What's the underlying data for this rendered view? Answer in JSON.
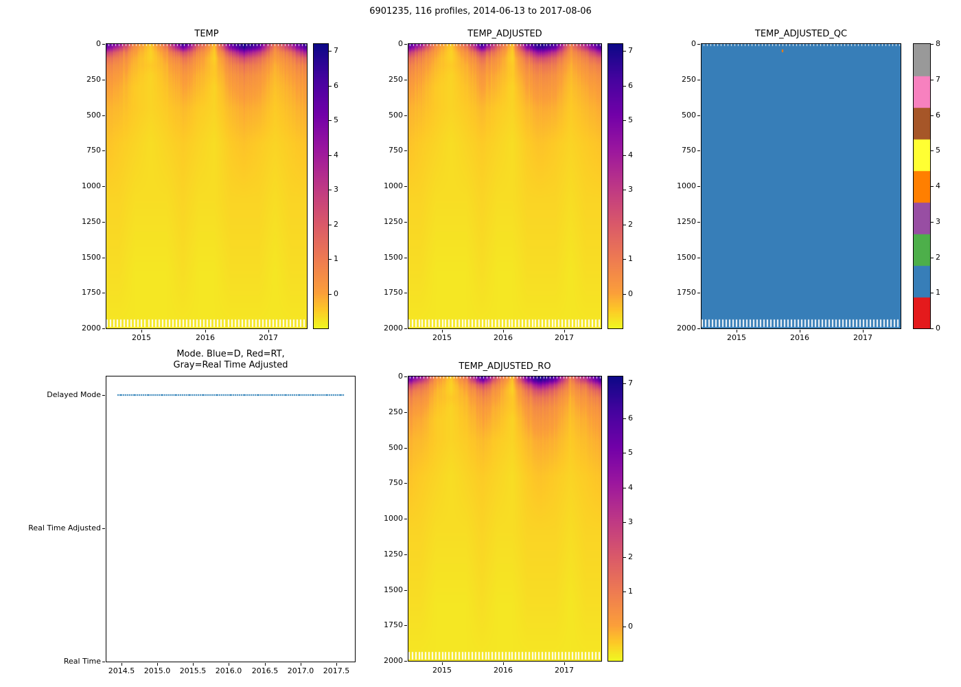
{
  "figure": {
    "title": "6901235, 116 profiles, 2014-06-13 to 2017-08-06",
    "background": "#ffffff"
  },
  "chart_data": [
    {
      "id": "temp",
      "type": "heatmap",
      "title": "TEMP",
      "xlabel": "",
      "ylabel": "",
      "x_range": [
        2014.45,
        2017.6
      ],
      "y_range": [
        2000,
        0
      ],
      "x_ticks": [
        {
          "v": 2015,
          "label": "2015"
        },
        {
          "v": 2016,
          "label": "2016"
        },
        {
          "v": 2017,
          "label": "2017"
        }
      ],
      "y_ticks": [
        0,
        250,
        500,
        750,
        1000,
        1250,
        1500,
        1750,
        2000
      ],
      "colormap": "plasma_r",
      "vmin": -1.0,
      "vmax": 7.2,
      "colorbar_ticks": [
        0,
        1,
        2,
        3,
        4,
        5,
        6,
        7
      ],
      "n_profiles": 116,
      "profile_span": [
        2014.45,
        2017.6
      ],
      "grid": {
        "times": [
          2014.45,
          2014.65,
          2014.9,
          2015.15,
          2015.4,
          2015.65,
          2015.9,
          2016.15,
          2016.4,
          2016.6,
          2016.85,
          2017.1,
          2017.35,
          2017.6
        ],
        "depths": [
          0,
          30,
          60,
          100,
          150,
          220,
          300,
          450,
          700,
          1100,
          1600,
          2000
        ],
        "values": [
          [
            6.0,
            4.5,
            0.5,
            -0.5,
            1.5,
            6.5,
            2.0,
            -0.4,
            5.5,
            7.0,
            6.0,
            1.0,
            4.0,
            6.8
          ],
          [
            5.0,
            3.0,
            0.2,
            -0.55,
            0.8,
            5.0,
            1.2,
            -0.5,
            4.5,
            6.5,
            5.0,
            0.5,
            3.0,
            6.0
          ],
          [
            3.0,
            1.5,
            0.0,
            -0.6,
            0.3,
            2.5,
            0.6,
            -0.55,
            2.5,
            4.5,
            3.0,
            0.2,
            1.5,
            4.0
          ],
          [
            1.5,
            0.8,
            -0.2,
            -0.6,
            0.0,
            1.2,
            0.2,
            -0.6,
            1.2,
            2.5,
            1.5,
            0.0,
            0.8,
            2.0
          ],
          [
            0.8,
            0.4,
            -0.3,
            -0.5,
            -0.2,
            0.6,
            0.0,
            -0.5,
            0.6,
            1.2,
            0.8,
            -0.2,
            0.4,
            1.0
          ],
          [
            0.4,
            0.1,
            -0.4,
            -0.6,
            -0.3,
            0.2,
            -0.2,
            -0.5,
            0.2,
            0.6,
            0.3,
            -0.3,
            0.1,
            0.5
          ],
          [
            0.1,
            -0.1,
            -0.5,
            -0.6,
            -0.4,
            0.0,
            -0.3,
            -0.6,
            0.0,
            0.3,
            0.1,
            -0.4,
            -0.1,
            0.2
          ],
          [
            -0.2,
            -0.3,
            -0.5,
            -0.6,
            -0.5,
            -0.3,
            -0.5,
            -0.6,
            -0.3,
            -0.1,
            -0.2,
            -0.5,
            -0.3,
            -0.1
          ],
          [
            -0.4,
            -0.5,
            -0.6,
            -0.7,
            -0.6,
            -0.5,
            -0.6,
            -0.7,
            -0.5,
            -0.4,
            -0.5,
            -0.6,
            -0.5,
            -0.4
          ],
          [
            -0.6,
            -0.6,
            -0.7,
            -0.7,
            -0.7,
            -0.6,
            -0.7,
            -0.7,
            -0.6,
            -0.6,
            -0.6,
            -0.7,
            -0.6,
            -0.6
          ],
          [
            -0.7,
            -0.7,
            -0.8,
            -0.8,
            -0.8,
            -0.7,
            -0.8,
            -0.8,
            -0.7,
            -0.7,
            -0.7,
            -0.8,
            -0.7,
            -0.7
          ],
          [
            -0.8,
            -0.8,
            -0.8,
            -0.8,
            -0.8,
            -0.8,
            -0.8,
            -0.8,
            -0.8,
            -0.8,
            -0.8,
            -0.8,
            -0.8,
            -0.8
          ]
        ]
      }
    },
    {
      "id": "temp_adjusted",
      "type": "heatmap",
      "title": "TEMP_ADJUSTED",
      "xlabel": "",
      "ylabel": "",
      "x_range": [
        2014.45,
        2017.6
      ],
      "y_range": [
        2000,
        0
      ],
      "x_ticks": [
        {
          "v": 2015,
          "label": "2015"
        },
        {
          "v": 2016,
          "label": "2016"
        },
        {
          "v": 2017,
          "label": "2017"
        }
      ],
      "y_ticks": [
        0,
        250,
        500,
        750,
        1000,
        1250,
        1500,
        1750,
        2000
      ],
      "colormap": "plasma_r",
      "vmin": -1.0,
      "vmax": 7.2,
      "colorbar_ticks": [
        0,
        1,
        2,
        3,
        4,
        5,
        6,
        7
      ],
      "n_profiles": 116,
      "profile_span": [
        2014.45,
        2017.6
      ],
      "grid_ref": "temp"
    },
    {
      "id": "temp_adjusted_qc",
      "type": "heatmap_discrete",
      "title": "TEMP_ADJUSTED_QC",
      "xlabel": "",
      "ylabel": "",
      "x_range": [
        2014.45,
        2017.6
      ],
      "y_range": [
        2000,
        0
      ],
      "x_ticks": [
        {
          "v": 2015,
          "label": "2015"
        },
        {
          "v": 2016,
          "label": "2016"
        },
        {
          "v": 2017,
          "label": "2017"
        }
      ],
      "y_ticks": [
        0,
        250,
        500,
        750,
        1000,
        1250,
        1500,
        1750,
        2000
      ],
      "fill_value": 1,
      "value_colors": [
        "#e41a1c",
        "#377eb8",
        "#4daf4a",
        "#984ea3",
        "#ff7f00",
        "#ffff33",
        "#a65628",
        "#f781bf",
        "#999999"
      ],
      "colorbar_ticks": [
        0,
        1,
        2,
        3,
        4,
        5,
        6,
        7,
        8
      ],
      "colorbar_max": 8,
      "n_profiles": 116,
      "profile_span": [
        2014.45,
        2017.6
      ],
      "anomalies": [
        {
          "time": 2015.72,
          "depth": 40,
          "value": 4
        }
      ]
    },
    {
      "id": "mode",
      "type": "scatter",
      "title_line1": "Mode. Blue=D, Red=RT,",
      "title_line2": "Gray=Real Time Adjusted",
      "x_range": [
        2014.29,
        2017.76
      ],
      "x_ticks": [
        {
          "v": 2014.5,
          "label": "2014.5"
        },
        {
          "v": 2015.0,
          "label": "2015.0"
        },
        {
          "v": 2015.5,
          "label": "2015.5"
        },
        {
          "v": 2016.0,
          "label": "2016.0"
        },
        {
          "v": 2016.5,
          "label": "2016.5"
        },
        {
          "v": 2017.0,
          "label": "2017.0"
        },
        {
          "v": 2017.5,
          "label": "2017.5"
        }
      ],
      "y_categories": [
        {
          "label": "Real Time",
          "pos": 0.0
        },
        {
          "label": "Real Time Adjusted",
          "pos": 0.467
        },
        {
          "label": "Delayed Mode",
          "pos": 0.935
        }
      ],
      "marker_color": "#1f77b4",
      "points": {
        "start": 2014.45,
        "end": 2017.6,
        "count": 116,
        "category": "Delayed Mode"
      }
    },
    {
      "id": "temp_adjusted_ro",
      "type": "heatmap",
      "title": "TEMP_ADJUSTED_RO",
      "xlabel": "",
      "ylabel": "",
      "x_range": [
        2014.45,
        2017.6
      ],
      "y_range": [
        2000,
        0
      ],
      "x_ticks": [
        {
          "v": 2015,
          "label": "2015"
        },
        {
          "v": 2016,
          "label": "2016"
        },
        {
          "v": 2017,
          "label": "2017"
        }
      ],
      "y_ticks": [
        0,
        250,
        500,
        750,
        1000,
        1250,
        1500,
        1750,
        2000
      ],
      "colormap": "plasma_r",
      "vmin": -1.0,
      "vmax": 7.2,
      "colorbar_ticks": [
        0,
        1,
        2,
        3,
        4,
        5,
        6,
        7
      ],
      "n_profiles": 116,
      "profile_span": [
        2014.45,
        2017.6
      ],
      "grid_ref": "temp"
    }
  ]
}
